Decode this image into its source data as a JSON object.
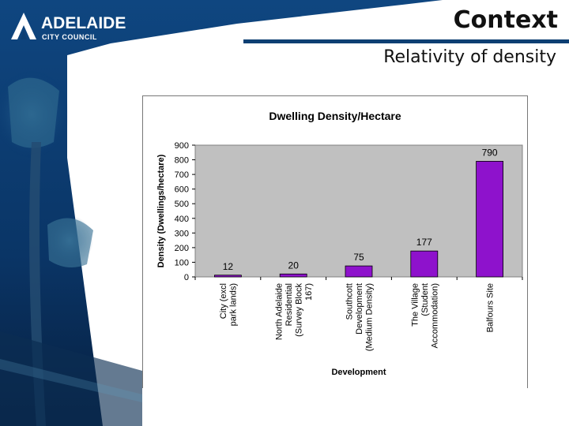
{
  "logo": {
    "name": "ADELAIDE",
    "subtitle": "CITY COUNCIL"
  },
  "slide": {
    "title": "Context",
    "subtitle": "Relativity of density"
  },
  "colors": {
    "background_navy": "#0d3f73",
    "bar_fill": "#8e12cc",
    "plot_area": "#c0c0c0"
  },
  "chart_data": {
    "type": "bar",
    "title": "Dwelling Density/Hectare",
    "xlabel": "Development",
    "ylabel": "Density (Dwellings/hectare)",
    "ylim": [
      0,
      900
    ],
    "yticks": [
      0,
      100,
      200,
      300,
      400,
      500,
      600,
      700,
      800,
      900
    ],
    "categories": [
      [
        "City (excl",
        "park lands)"
      ],
      [
        "North Adelaide",
        "Residential",
        "(Survey Block",
        "167)"
      ],
      [
        "Southcott",
        "Development",
        "(Medium Density)"
      ],
      [
        "The Village",
        "(Student",
        "Accommodation)"
      ],
      [
        "Balfours Site"
      ]
    ],
    "values": [
      12,
      20,
      75,
      177,
      790
    ],
    "data_labels": [
      "12",
      "20",
      "75",
      "177",
      "790"
    ],
    "grid": false,
    "legend": "none"
  }
}
